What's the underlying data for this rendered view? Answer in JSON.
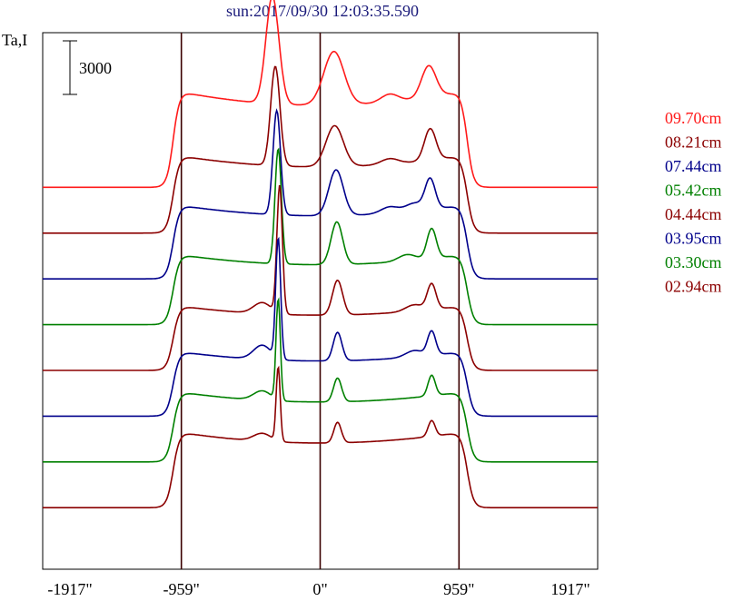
{
  "chart_data": {
    "type": "line",
    "title": "sun:2017/09/30 12:03:35.590",
    "ylabel": "Ta,I",
    "scale_bar_label": "3000",
    "x_ticks": [
      "-1917\"",
      "-959\"",
      "0\"",
      "959\"",
      "1917\""
    ],
    "x_tick_values": [
      -1917,
      -959,
      0,
      959,
      1917
    ],
    "xlim": [
      -1917,
      1917
    ],
    "vertical_markers": [
      -959,
      0,
      959
    ],
    "series": [
      {
        "name": "09.70cm",
        "color": "#ff1a1a",
        "base": 24200,
        "disk": 5200,
        "peaks": [
          [
            -330,
            6800,
            45
          ],
          [
            95,
            3400,
            70
          ],
          [
            750,
            2000,
            50
          ]
        ],
        "bumps": [
          [
            480,
            500
          ]
        ]
      },
      {
        "name": "08.21cm",
        "color": "#8b0000",
        "base": 21300,
        "disk": 4200,
        "peaks": [
          [
            -310,
            6300,
            32
          ],
          [
            100,
            2600,
            60
          ],
          [
            760,
            2000,
            40
          ]
        ],
        "bumps": [
          [
            480,
            350
          ]
        ]
      },
      {
        "name": "07.44cm",
        "color": "#00008b",
        "base": 18400,
        "disk": 4000,
        "peaks": [
          [
            -300,
            6600,
            26
          ],
          [
            110,
            2900,
            50
          ],
          [
            760,
            1900,
            35
          ]
        ],
        "bumps": [
          [
            650,
            500
          ],
          [
            480,
            400
          ]
        ]
      },
      {
        "name": "05.42cm",
        "color": "#008000",
        "base": 15500,
        "disk": 3800,
        "peaks": [
          [
            -290,
            7300,
            22
          ],
          [
            115,
            2700,
            40
          ],
          [
            770,
            1900,
            32
          ]
        ],
        "bumps": [
          [
            600,
            400
          ]
        ]
      },
      {
        "name": "04.44cm",
        "color": "#8b0000",
        "base": 12600,
        "disk": 3500,
        "peaks": [
          [
            -280,
            8100,
            19
          ],
          [
            120,
            2200,
            35
          ],
          [
            770,
            1600,
            30
          ]
        ],
        "bumps": [
          [
            -400,
            700
          ],
          [
            650,
            400
          ]
        ]
      },
      {
        "name": "03.95cm",
        "color": "#00008b",
        "base": 9700,
        "disk": 3500,
        "peaks": [
          [
            -290,
            7600,
            17
          ],
          [
            120,
            1800,
            30
          ],
          [
            770,
            1500,
            28
          ]
        ],
        "bumps": [
          [
            -400,
            900
          ],
          [
            650,
            400
          ]
        ]
      },
      {
        "name": "03.30cm",
        "color": "#008000",
        "base": 6800,
        "disk": 3800,
        "peaks": [
          [
            -290,
            6400,
            15
          ],
          [
            120,
            1500,
            28
          ],
          [
            770,
            1300,
            25
          ]
        ],
        "bumps": [
          [
            -400,
            600
          ]
        ]
      },
      {
        "name": "02.94cm",
        "color": "#8b0000",
        "base": 3900,
        "disk": 4100,
        "peaks": [
          [
            -290,
            4700,
            14
          ],
          [
            120,
            1300,
            26
          ],
          [
            770,
            1000,
            24
          ]
        ],
        "bumps": [
          [
            -400,
            500
          ]
        ]
      }
    ],
    "ylim": [
      0,
      34000
    ]
  }
}
